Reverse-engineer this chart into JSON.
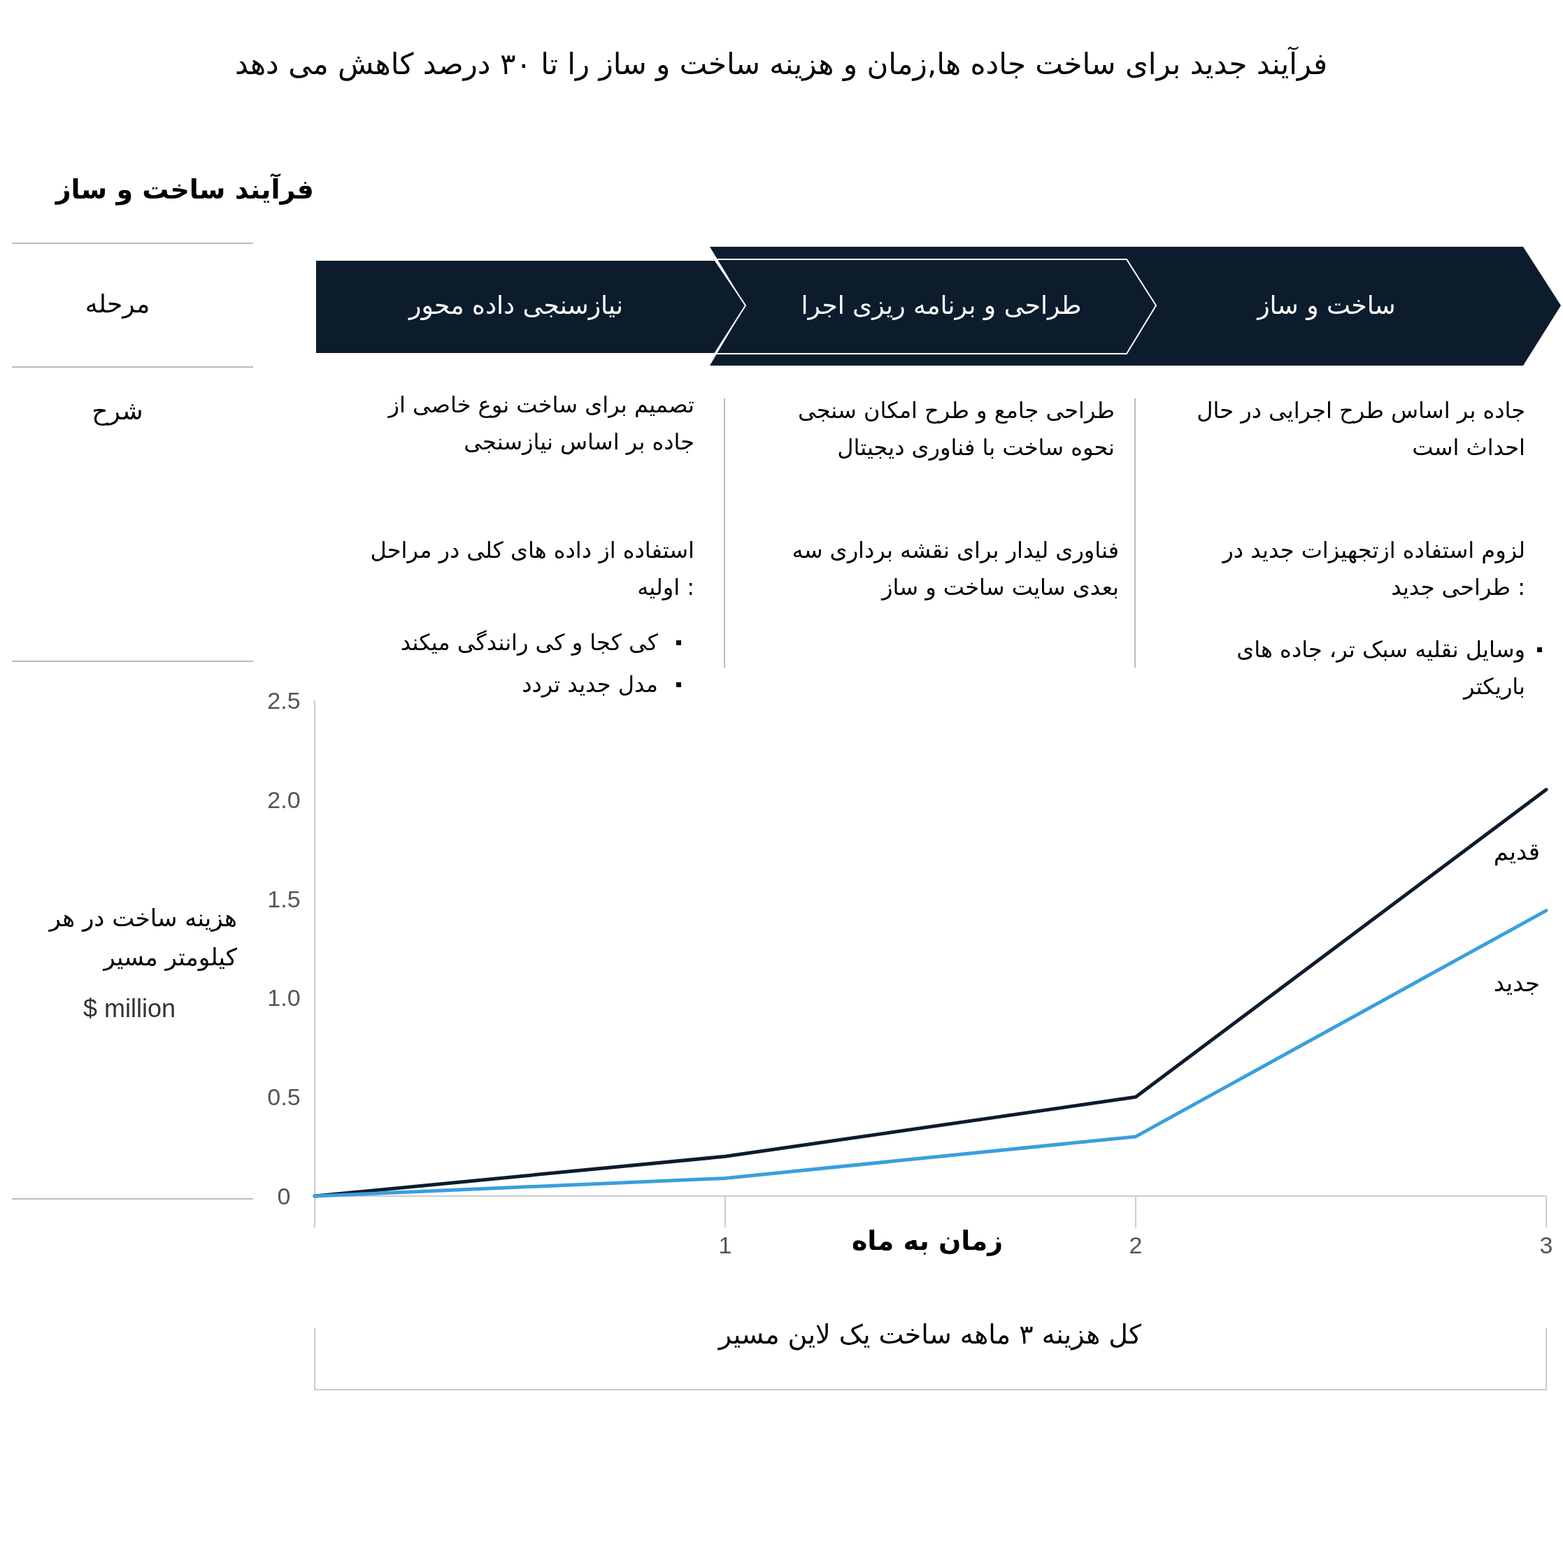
{
  "chart_data": {
    "type": "line",
    "title": "فرآیند جدید برای ساخت جاده ها,زمان و هزینه ساخت و ساز را تا ۳۰ درصد کاهش می دهد",
    "subtitle": "فرآیند ساخت و ساز",
    "xlabel": "زمان به ماه",
    "ylabel": "هزینه ساخت در هر\nکیلومتر مسیر",
    "x": [
      0,
      1,
      2,
      3
    ],
    "series": [
      {
        "name": "قدیم",
        "color": "#0c1c2c",
        "values": [
          0,
          0.2,
          0.5,
          2.05
        ]
      },
      {
        "name": "جدید",
        "color": "#3a9fdc",
        "values": [
          0,
          0.09,
          0.3,
          1.44
        ]
      }
    ],
    "xlim": [
      0,
      3
    ],
    "xticks": [
      {
        "value": 0,
        "label": null
      },
      1,
      2,
      3
    ],
    "ylim": [
      0,
      2.5
    ],
    "yticks": [
      0,
      0.5,
      {
        "value": 1,
        "label": "1.0"
      },
      1.5,
      {
        "value": 2,
        "label": "2.0"
      },
      2.5
    ],
    "grid": false,
    "legend": false,
    "marker": "none",
    "line_style": "solid",
    "annotations": [
      "مرحله",
      "شرح",
      "نیازسنجی داده محور",
      "طراحی و برنامه ریزی اجرا",
      "ساخت و ساز",
      "تصمیم برای ساخت نوع خاصی از\nجاده بر اساس نیازسنجی",
      "طراحی جامع و طرح امکان سنجی\nنحوه ساخت با فناوری دیجیتال",
      "جاده بر اساس طرح اجرایی در حال\nاحداث است",
      "استفاده از داده های کلی در مراحل\nاولیه :",
      "فناوری لیدار برای نقشه برداری سه\nبعدی سایت ساخت و ساز",
      "لزوم استفاده ازتجهیزات جدید در\nطراحی جدید :",
      "کی کجا و کی رانندگی میکند",
      "مدل جدید تردد",
      "وسایل نقلیه سبک تر، جاده های\nباریکتر",
      "$ million",
      "کل هزینه ۳ ماهه ساخت یک لاین مسیر"
    ]
  }
}
